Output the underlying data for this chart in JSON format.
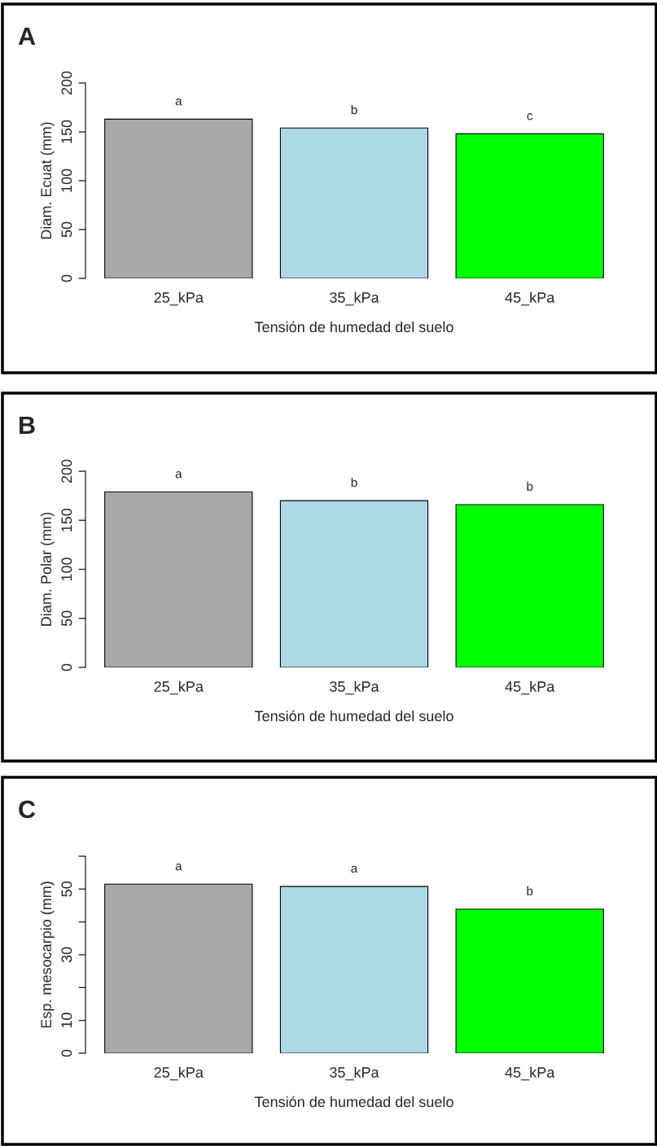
{
  "chart_data": [
    {
      "type": "bar",
      "title": "A",
      "xlabel": "Tensión de humedad del suelo",
      "ylabel": "Diam. Ecuat (mm)",
      "categories": [
        "25_kPa",
        "35_kPa",
        "45_kPa"
      ],
      "values": [
        163,
        154,
        148
      ],
      "colors": [
        "#a9a9a9",
        "#add8e6",
        "#00ff00"
      ],
      "ylim": [
        0,
        200
      ],
      "yticks": [
        0,
        50,
        100,
        150,
        200
      ],
      "annotations": [
        {
          "text": "a",
          "x": "25_kPa",
          "y": 163
        },
        {
          "text": "b",
          "x": "35_kPa",
          "y": 154
        },
        {
          "text": "c",
          "x": "45_kPa",
          "y": 148
        }
      ]
    },
    {
      "type": "bar",
      "title": "B",
      "xlabel": "Tensión de humedad del suelo",
      "ylabel": "Diam. Polar (mm)",
      "categories": [
        "25_kPa",
        "35_kPa",
        "45_kPa"
      ],
      "values": [
        179,
        170,
        166
      ],
      "colors": [
        "#a9a9a9",
        "#add8e6",
        "#00ff00"
      ],
      "ylim": [
        0,
        200
      ],
      "yticks": [
        0,
        50,
        100,
        150,
        200
      ],
      "annotations": [
        {
          "text": "a",
          "x": "25_kPa",
          "y": 179
        },
        {
          "text": "b",
          "x": "35_kPa",
          "y": 170
        },
        {
          "text": "b",
          "x": "45_kPa",
          "y": 166
        }
      ]
    },
    {
      "type": "bar",
      "title": "C",
      "xlabel": "Tensión de humedad del suelo",
      "ylabel": "Esp. mesocarpio (mm)",
      "categories": [
        "25_kPa",
        "35_kPa",
        "45_kPa"
      ],
      "values": [
        51.5,
        50.8,
        43.9
      ],
      "colors": [
        "#a9a9a9",
        "#add8e6",
        "#00ff00"
      ],
      "ylim": [
        0,
        60
      ],
      "yticks": [
        0,
        10,
        {
          "value": 20,
          "label": null
        },
        30,
        {
          "value": 40,
          "label": null
        },
        50,
        {
          "value": 60,
          "label": null
        }
      ],
      "annotations": [
        {
          "text": "a",
          "x": "25_kPa",
          "y": 51.5
        },
        {
          "text": "a",
          "x": "35_kPa",
          "y": 50.8
        },
        {
          "text": "b",
          "x": "45_kPa",
          "y": 43.9
        }
      ]
    }
  ]
}
